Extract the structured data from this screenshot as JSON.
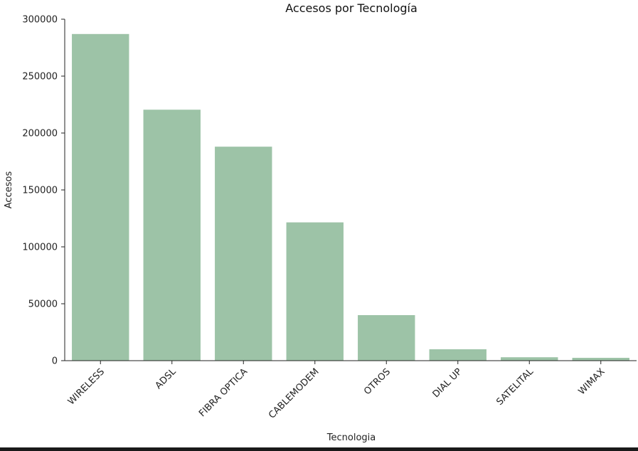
{
  "chart_data": {
    "type": "bar",
    "title": "Accesos por Tecnología",
    "xlabel": "Tecnologia",
    "ylabel": "Accesos",
    "categories": [
      "WIRELESS",
      "ADSL",
      "FIBRA OPTICA",
      "CABLEMODEM",
      "OTROS",
      "DIAL UP",
      "SATELITAL",
      "WIMAX"
    ],
    "values": [
      287000,
      220500,
      188000,
      121500,
      40000,
      10000,
      3000,
      2500
    ],
    "ylim": [
      0,
      300000
    ],
    "yticks": [
      0,
      50000,
      100000,
      150000,
      200000,
      250000,
      300000
    ],
    "ytick_labels": [
      "0",
      "50000",
      "100000",
      "150000",
      "200000",
      "250000",
      "300000"
    ],
    "bar_color": "#9dc3a7",
    "grid": false,
    "legend": "none"
  }
}
